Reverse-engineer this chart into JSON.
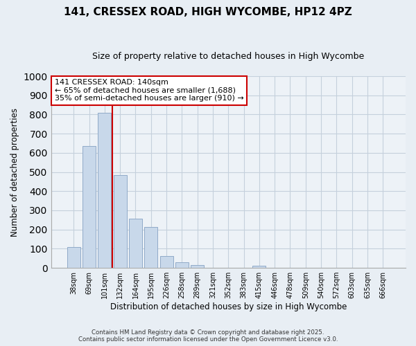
{
  "title": "141, CRESSEX ROAD, HIGH WYCOMBE, HP12 4PZ",
  "subtitle": "Size of property relative to detached houses in High Wycombe",
  "xlabel": "Distribution of detached houses by size in High Wycombe",
  "ylabel": "Number of detached properties",
  "bar_labels": [
    "38sqm",
    "69sqm",
    "101sqm",
    "132sqm",
    "164sqm",
    "195sqm",
    "226sqm",
    "258sqm",
    "289sqm",
    "321sqm",
    "352sqm",
    "383sqm",
    "415sqm",
    "446sqm",
    "478sqm",
    "509sqm",
    "540sqm",
    "572sqm",
    "603sqm",
    "635sqm",
    "666sqm"
  ],
  "bar_values": [
    110,
    635,
    810,
    485,
    255,
    215,
    60,
    28,
    15,
    0,
    0,
    0,
    10,
    0,
    0,
    0,
    0,
    0,
    0,
    0,
    0
  ],
  "bar_color": "#c8d8ea",
  "bar_edge_color": "#90aac8",
  "vline_color": "#cc0000",
  "ylim": [
    0,
    1000
  ],
  "yticks": [
    0,
    100,
    200,
    300,
    400,
    500,
    600,
    700,
    800,
    900,
    1000
  ],
  "annotation_title": "141 CRESSEX ROAD: 140sqm",
  "annotation_line1": "← 65% of detached houses are smaller (1,688)",
  "annotation_line2": "35% of semi-detached houses are larger (910) →",
  "annotation_box_color": "#ffffff",
  "annotation_box_edge": "#cc0000",
  "footer_line1": "Contains HM Land Registry data © Crown copyright and database right 2025.",
  "footer_line2": "Contains public sector information licensed under the Open Government Licence v3.0.",
  "bg_color": "#e8eef4",
  "plot_bg_color": "#edf2f7",
  "grid_color": "#c5d0dc"
}
